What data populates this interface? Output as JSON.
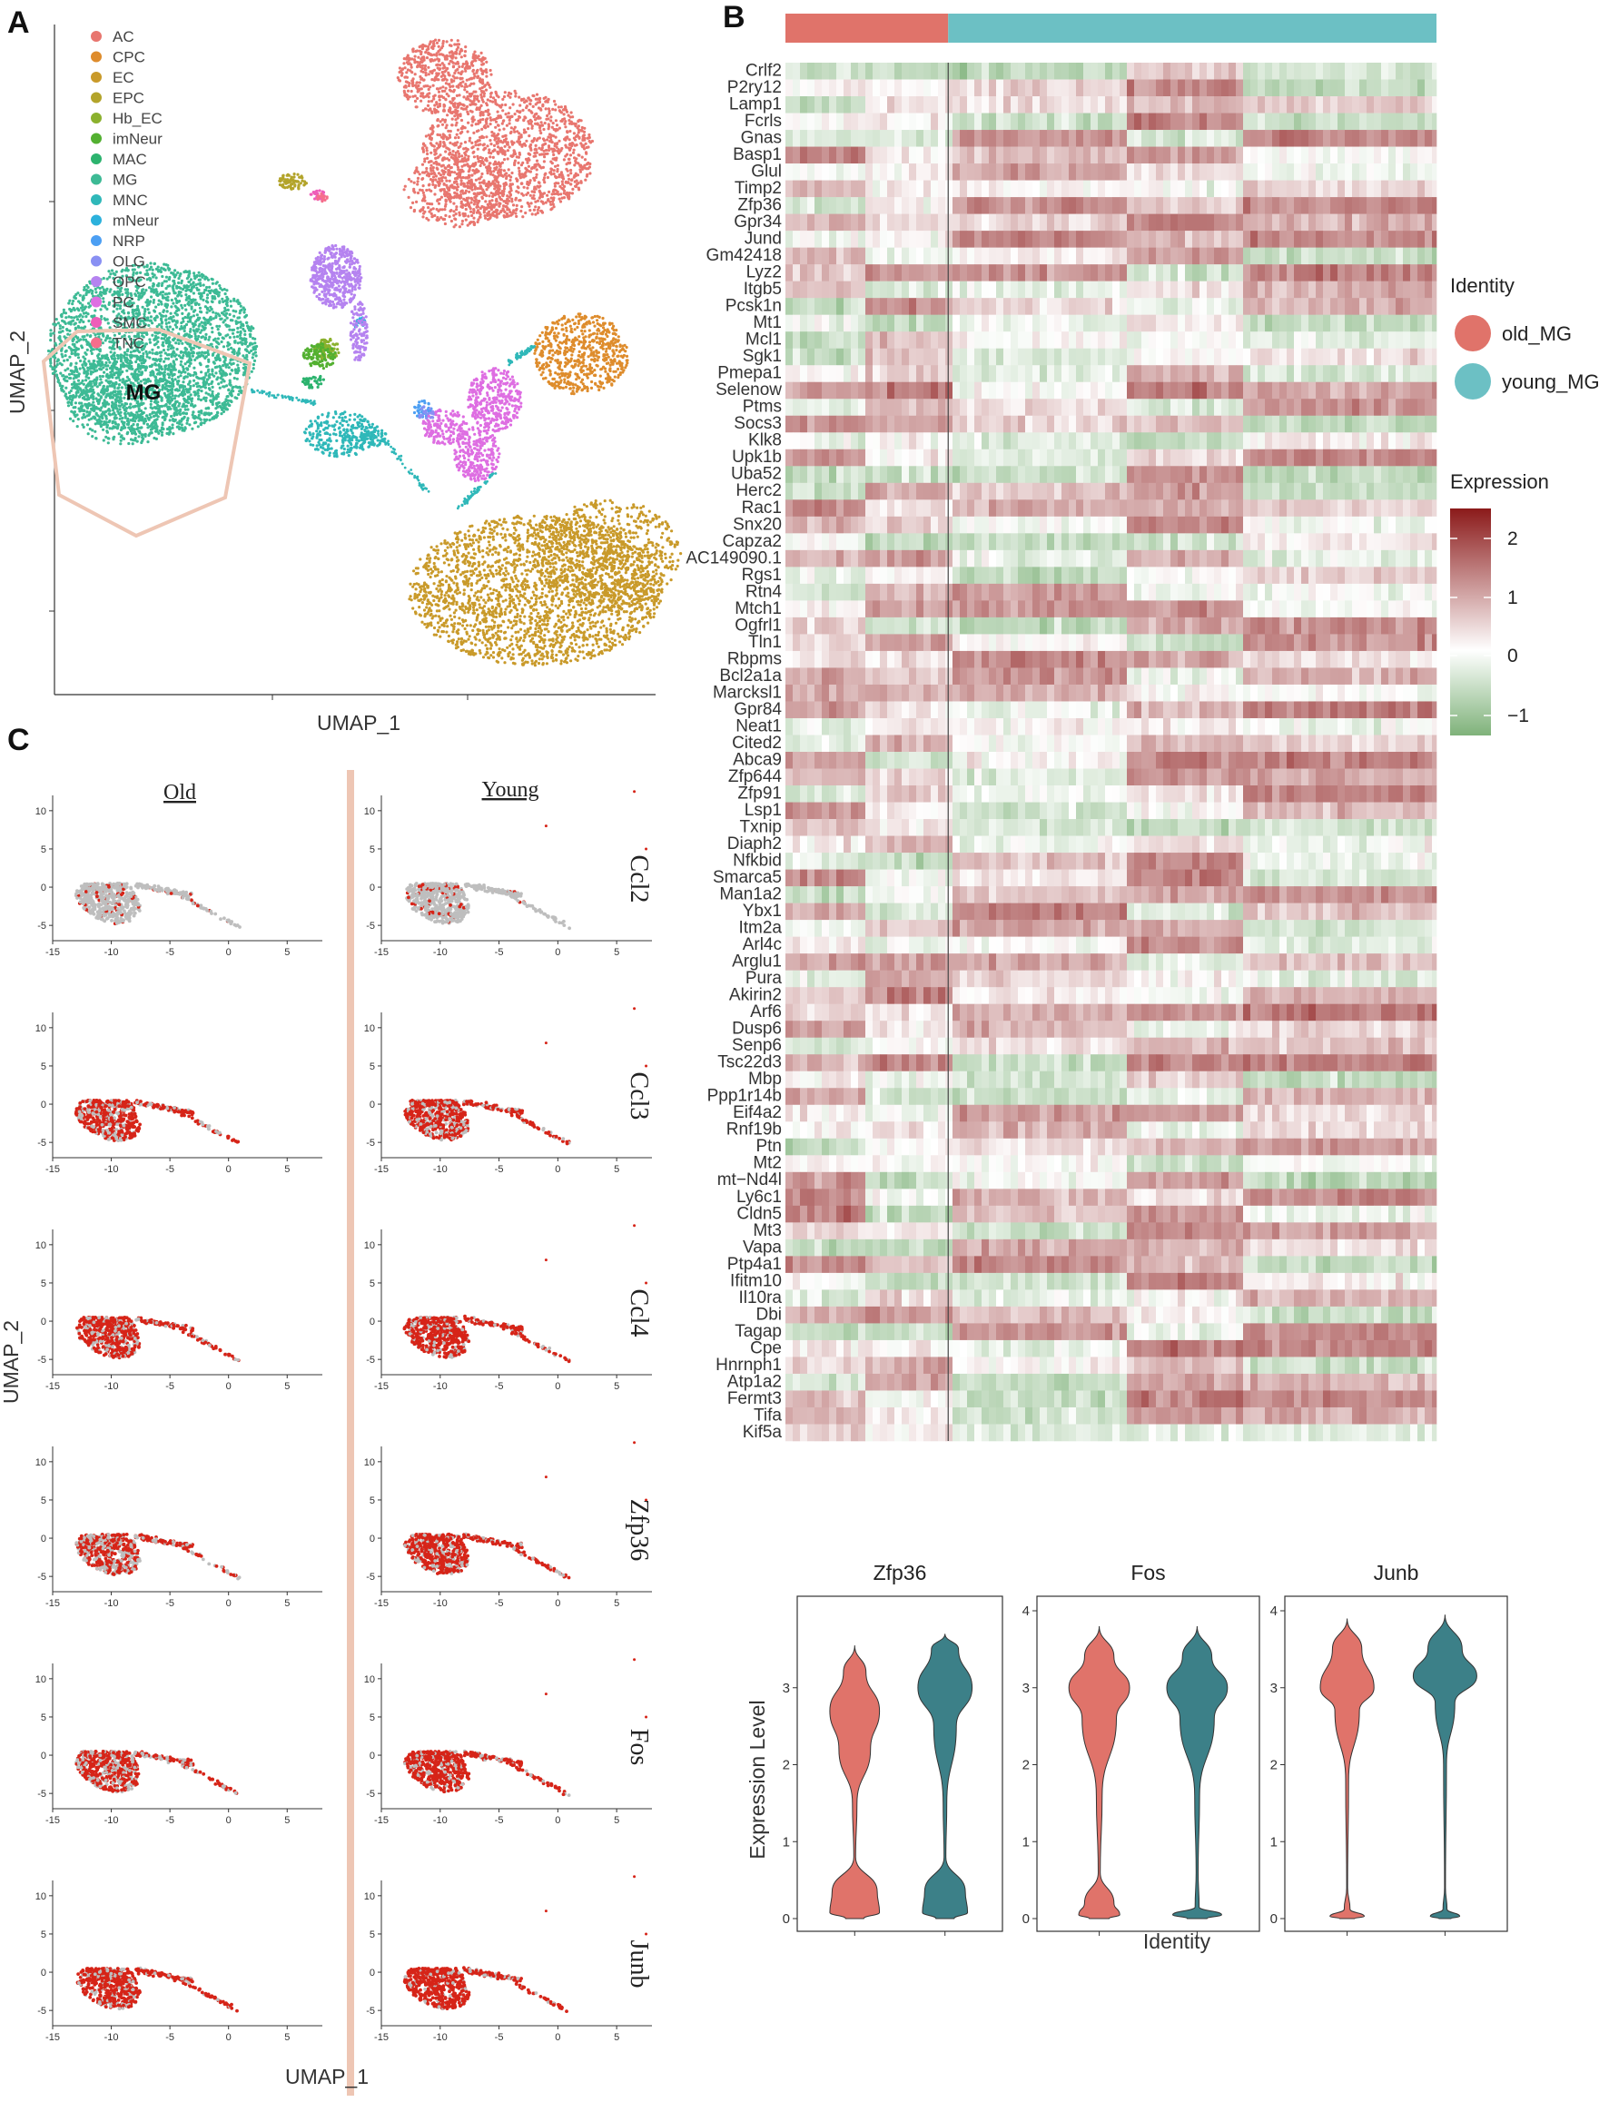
{
  "panels": {
    "a": "A",
    "b": "B",
    "c": "C"
  },
  "colors": {
    "old": "#E0736A",
    "young": "#6CC0C4",
    "young_violin": "#3C8088",
    "heat_high": "#8B1A1A",
    "heat_mid": "#FFFFFF",
    "heat_low": "#7FB27A",
    "feature_pos": "#D62418",
    "feature_neg": "#BEBEBE",
    "hexagon": "#EEC6B4"
  },
  "chart_data": [
    {
      "id": "umap_clusters",
      "type": "scatter",
      "xlabel": "UMAP_1",
      "ylabel": "UMAP_2",
      "annotation": "MG",
      "legend_position": "top-left",
      "clusters": [
        {
          "name": "AC",
          "color": "#E8766F"
        },
        {
          "name": "CPC",
          "color": "#DE8C2C"
        },
        {
          "name": "EC",
          "color": "#C99A2A"
        },
        {
          "name": "EPC",
          "color": "#B3A42B"
        },
        {
          "name": "Hb_EC",
          "color": "#8BB12E"
        },
        {
          "name": "imNeur",
          "color": "#53B031"
        },
        {
          "name": "MAC",
          "color": "#2CB36E"
        },
        {
          "name": "MG",
          "color": "#3DBA95"
        },
        {
          "name": "MNC",
          "color": "#2FB8B9"
        },
        {
          "name": "mNeur",
          "color": "#2CB1DC"
        },
        {
          "name": "NRP",
          "color": "#4C9FF3"
        },
        {
          "name": "OLG",
          "color": "#8990F3"
        },
        {
          "name": "OPC",
          "color": "#B583F0"
        },
        {
          "name": "PC",
          "color": "#DE6EE2"
        },
        {
          "name": "SMC",
          "color": "#EE5DB9"
        },
        {
          "name": "TNC",
          "color": "#F56E8C"
        }
      ]
    },
    {
      "id": "heatmap",
      "type": "heatmap",
      "identity_legend_title": "Identity",
      "identities": [
        "old_MG",
        "young_MG"
      ],
      "old_fraction": 0.25,
      "colorbar_title": "Expression",
      "colorbar_ticks": [
        "2",
        "1",
        "0",
        "−1"
      ],
      "colorbar_range": [
        -1.5,
        2.5
      ],
      "genes": [
        "Crlf2",
        "P2ry12",
        "Lamp1",
        "Fcrls",
        "Gnas",
        "Basp1",
        "Glul",
        "Timp2",
        "Zfp36",
        "Gpr34",
        "Jund",
        "Gm42418",
        "Lyz2",
        "Itgb5",
        "Pcsk1n",
        "Mt1",
        "Mcl1",
        "Sgk1",
        "Pmepa1",
        "Selenow",
        "Ptms",
        "Socs3",
        "Klk8",
        "Upk1b",
        "Uba52",
        "Herc2",
        "Rac1",
        "Snx20",
        "Capza2",
        "AC149090.1",
        "Rgs1",
        "Rtn4",
        "Mtch1",
        "Ogfrl1",
        "Tln1",
        "Rbpms",
        "Bcl2a1a",
        "Marcksl1",
        "Gpr84",
        "Neat1",
        "Cited2",
        "Abca9",
        "Zfp644",
        "Zfp91",
        "Lsp1",
        "Txnip",
        "Diaph2",
        "Nfkbid",
        "Smarca5",
        "Man1a2",
        "Ybx1",
        "Itm2a",
        "Arl4c",
        "Arglu1",
        "Pura",
        "Akirin2",
        "Arf6",
        "Dusp6",
        "Senp6",
        "Tsc22d3",
        "Mbp",
        "Ppp1r14b",
        "Eif4a2",
        "Rnf19b",
        "Ptn",
        "Mt2",
        "mt−Nd4l",
        "Ly6c1",
        "Cldn5",
        "Mt3",
        "Vapa",
        "Ptp4a1",
        "Ifitm10",
        "Il10ra",
        "Dbi",
        "Tagap",
        "Cpe",
        "Hnrnph1",
        "Atp1a2",
        "Fermt3",
        "Tifa",
        "Kif5a"
      ]
    },
    {
      "id": "feature_plots",
      "type": "scatter",
      "xlabel": "UMAP_1",
      "ylabel": "UMAP_2",
      "column_titles": [
        "Old",
        "Young"
      ],
      "genes": [
        "Ccl2",
        "Ccl3",
        "Ccl4",
        "Zfp36",
        "Fos",
        "Junb"
      ],
      "xticks": [
        "-15",
        "-10",
        "-5",
        "0",
        "5"
      ],
      "yticks": [
        "10",
        "5",
        "0",
        "-5"
      ],
      "positive_fraction": {
        "Ccl2": [
          0.1,
          0.1
        ],
        "Ccl3": [
          0.7,
          0.75
        ],
        "Ccl4": [
          0.75,
          0.8
        ],
        "Zfp36": [
          0.6,
          0.75
        ],
        "Fos": [
          0.7,
          0.8
        ],
        "Junb": [
          0.8,
          0.85
        ]
      }
    },
    {
      "id": "violins",
      "type": "violin",
      "xlabel": "Identity",
      "ylabel": "Expression Level",
      "ylim": [
        0,
        4
      ],
      "genes": [
        "Zfp36",
        "Fos",
        "Junb"
      ]
    }
  ]
}
